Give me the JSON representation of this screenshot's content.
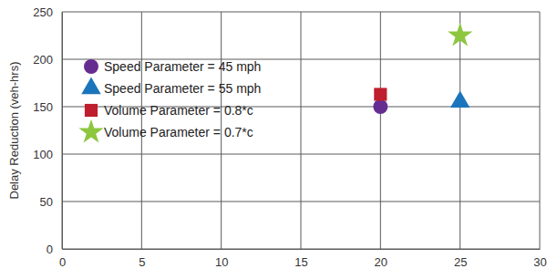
{
  "chart_data": {
    "type": "scatter",
    "y_label": "Delay Reduction (veh-hrs)",
    "series": [
      {
        "name": "Speed Parameter = 45 mph",
        "color": "#662d91",
        "marker": "circle",
        "x": [
          20
        ],
        "values": [
          150
        ]
      },
      {
        "name": "Speed Parameter = 55 mph",
        "color": "#1b75bc",
        "marker": "triangle",
        "x": [
          25
        ],
        "values": [
          155
        ]
      },
      {
        "name": "Volume Parameter = 0.8*c",
        "color": "#be1e2d",
        "marker": "square",
        "x": [
          20
        ],
        "values": [
          163
        ]
      },
      {
        "name": "Volume Parameter = 0.7*c",
        "color": "#8dc63f",
        "marker": "star",
        "x": [
          25
        ],
        "values": [
          225
        ]
      }
    ],
    "xlim": [
      0,
      30
    ],
    "xticks": [
      0,
      5,
      10,
      15,
      20,
      25,
      30
    ],
    "ylim": [
      0,
      250
    ],
    "yticks": [
      0,
      50,
      100,
      150,
      200,
      250
    ],
    "grid": true,
    "legend": "upper-left"
  }
}
